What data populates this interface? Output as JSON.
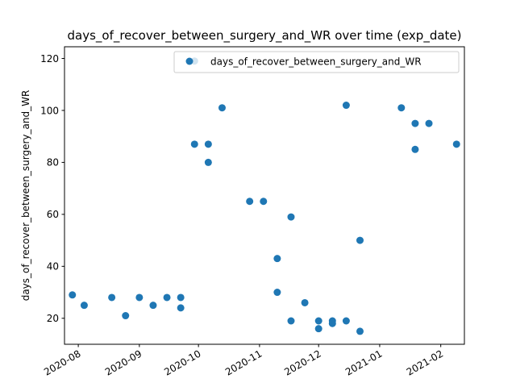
{
  "chart_data": {
    "type": "scatter",
    "title": "days_of_recover_between_surgery_and_WR over time (exp_date)",
    "xlabel": "",
    "ylabel": "days_of_recover_between_surgery_and_WR",
    "xlim": [
      "2020-07-25",
      "2021-02-13"
    ],
    "ylim": [
      10,
      124.5
    ],
    "x_ticks": [
      "2020-08-01",
      "2020-09-01",
      "2020-10-01",
      "2020-11-01",
      "2020-12-01",
      "2021-01-01",
      "2021-02-01"
    ],
    "x_tick_labels": [
      "2020-08",
      "2020-09",
      "2020-10",
      "2020-11",
      "2020-12",
      "2021-01",
      "2021-02"
    ],
    "y_ticks": [
      20,
      40,
      60,
      80,
      100,
      120
    ],
    "legend": {
      "position": "upper right",
      "entries": [
        "days_of_recover_between_surgery_and_WR"
      ]
    },
    "grid": false,
    "color": "#1f77b4",
    "series": [
      {
        "name": "days_of_recover_between_surgery_and_WR",
        "points": [
          {
            "x": "2020-07-29",
            "y": 29
          },
          {
            "x": "2020-08-04",
            "y": 25
          },
          {
            "x": "2020-08-18",
            "y": 28
          },
          {
            "x": "2020-08-25",
            "y": 21
          },
          {
            "x": "2020-09-01",
            "y": 28
          },
          {
            "x": "2020-09-08",
            "y": 25
          },
          {
            "x": "2020-09-15",
            "y": 28
          },
          {
            "x": "2020-09-22",
            "y": 28
          },
          {
            "x": "2020-09-22",
            "y": 24
          },
          {
            "x": "2020-09-29",
            "y": 87
          },
          {
            "x": "2020-09-29",
            "y": 119
          },
          {
            "x": "2020-10-06",
            "y": 87
          },
          {
            "x": "2020-10-06",
            "y": 80
          },
          {
            "x": "2020-10-13",
            "y": 101
          },
          {
            "x": "2020-10-27",
            "y": 65
          },
          {
            "x": "2020-11-03",
            "y": 65
          },
          {
            "x": "2020-11-10",
            "y": 43
          },
          {
            "x": "2020-11-10",
            "y": 30
          },
          {
            "x": "2020-11-17",
            "y": 59
          },
          {
            "x": "2020-11-17",
            "y": 19
          },
          {
            "x": "2020-11-24",
            "y": 26
          },
          {
            "x": "2020-12-01",
            "y": 19
          },
          {
            "x": "2020-12-01",
            "y": 16
          },
          {
            "x": "2020-12-08",
            "y": 19
          },
          {
            "x": "2020-12-08",
            "y": 18
          },
          {
            "x": "2020-12-15",
            "y": 102
          },
          {
            "x": "2020-12-15",
            "y": 19
          },
          {
            "x": "2020-12-22",
            "y": 50
          },
          {
            "x": "2020-12-22",
            "y": 15
          },
          {
            "x": "2021-01-12",
            "y": 101
          },
          {
            "x": "2021-01-19",
            "y": 95
          },
          {
            "x": "2021-01-19",
            "y": 85
          },
          {
            "x": "2021-01-26",
            "y": 95
          },
          {
            "x": "2021-02-09",
            "y": 87
          }
        ]
      }
    ]
  }
}
